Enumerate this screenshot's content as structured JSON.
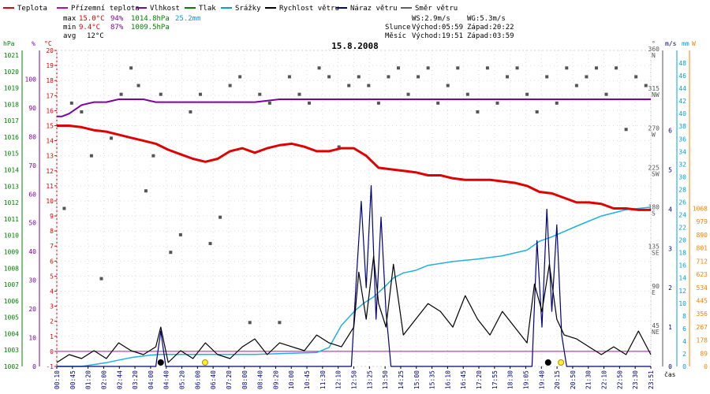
{
  "chart_data": {
    "type": "line",
    "title": "15.8.2008",
    "legend": [
      {
        "name": "Teplota",
        "color": "#e00000"
      },
      {
        "name": "Přízemní teplota",
        "color": "#c000c0"
      },
      {
        "name": "Vlhkost",
        "color": "#8000a0"
      },
      {
        "name": "Tlak",
        "color": "#008000"
      },
      {
        "name": "Srážky",
        "color": "#00a0e0"
      },
      {
        "name": "Rychlost větru",
        "color": "#000000"
      },
      {
        "name": "Náraz větru",
        "color": "#000080"
      },
      {
        "name": "Směr větru",
        "color": "#606060"
      }
    ],
    "stats": {
      "max_label": "max",
      "max_temp": "15.0°C",
      "max_hum": "94%",
      "max_press": "1014.8hPa",
      "precip_total": "25.2mm",
      "min_label": "min",
      "min_temp": "9.4°C",
      "min_hum": "87%",
      "min_press": "1009.5hPa",
      "avg_label": "avg",
      "avg_temp": "12°C",
      "ws": "WS:2.9m/s",
      "wg": "WG:5.3m/s",
      "sun_label": "Slunce",
      "sunrise": "Východ:05:59",
      "sunset": "Západ:20:22",
      "moon_label": "Měsíc",
      "moonrise": "Východ:19:51",
      "moonset": "Západ:03:59"
    },
    "axes": {
      "hpa_title": "hPa",
      "pct_title": "%",
      "temp_title": "°C",
      "dir_title": "°",
      "ms_title": "m/s",
      "mm_title": "mm",
      "w_title": "W",
      "hpa_ticks": [
        "1002",
        "1003",
        "1004",
        "1005",
        "1006",
        "1007",
        "1008",
        "1009",
        "1010",
        "1011",
        "1012",
        "1013",
        "1014",
        "1015",
        "1016",
        "1017",
        "1018",
        "1019",
        "1020",
        "1021"
      ],
      "pct_ticks": [
        "0",
        "10",
        "20",
        "30",
        "40",
        "50",
        "60",
        "70",
        "80",
        "90",
        "100"
      ],
      "temp_ticks": [
        "-1",
        "0",
        "1",
        "2",
        "3",
        "4",
        "5",
        "6",
        "7",
        "8",
        "9",
        "10",
        "11",
        "12",
        "13",
        "14",
        "15",
        "16",
        "17",
        "18",
        "19",
        "20"
      ],
      "temp_range": [
        -1,
        20
      ],
      "pct_range": [
        0,
        100
      ],
      "dir_ticks": [
        {
          "deg": 45,
          "label": "45",
          "compass": "NE"
        },
        {
          "deg": 90,
          "label": "90",
          "compass": "E"
        },
        {
          "deg": 135,
          "label": "135",
          "compass": "SE"
        },
        {
          "deg": 180,
          "label": "180",
          "compass": "S"
        },
        {
          "deg": 225,
          "label": "225",
          "compass": "SW"
        },
        {
          "deg": 270,
          "label": "270",
          "compass": "W"
        },
        {
          "deg": 315,
          "label": "315",
          "compass": "NW"
        },
        {
          "deg": 360,
          "label": "360",
          "compass": "N"
        }
      ],
      "dir_range": [
        0,
        360
      ],
      "ms_ticks": [
        "0",
        "1",
        "2",
        "3",
        "4",
        "5",
        "6"
      ],
      "ms_range": [
        0,
        6
      ],
      "mm_ticks": [
        "0",
        "2",
        "4",
        "6",
        "8",
        "10",
        "12",
        "14",
        "16",
        "18",
        "20",
        "22",
        "24",
        "26",
        "28",
        "30",
        "32",
        "34",
        "36",
        "38",
        "40",
        "42",
        "44",
        "46",
        "48"
      ],
      "mm_range": [
        0,
        48
      ],
      "w_ticks": [
        "0",
        "89",
        "178",
        "267",
        "356",
        "445",
        "534",
        "623",
        "712",
        "801",
        "890",
        "979",
        "1068"
      ],
      "w_range": [
        0,
        2136
      ],
      "x_label": "čas",
      "x_ticks": [
        "00:10",
        "00:45",
        "01:20",
        "02:00",
        "02:44",
        "03:20",
        "04:00",
        "04:40",
        "05:20",
        "06:00",
        "06:40",
        "07:20",
        "08:00",
        "08:40",
        "09:20",
        "10:00",
        "10:45",
        "11:30",
        "12:10",
        "12:50",
        "13:25",
        "13:50",
        "14:25",
        "15:00",
        "15:35",
        "16:10",
        "16:45",
        "17:20",
        "17:55",
        "18:30",
        "19:05",
        "19:40",
        "20:15",
        "20:50",
        "21:30",
        "22:10",
        "22:50",
        "23:30",
        "23:51"
      ]
    },
    "temperature": {
      "x_hours": [
        0,
        0.5,
        1,
        1.5,
        2,
        2.5,
        3,
        3.5,
        4,
        4.5,
        5,
        5.5,
        6,
        6.5,
        7,
        7.5,
        8,
        8.5,
        9,
        9.5,
        10,
        10.5,
        11,
        11.5,
        12,
        12.5,
        13,
        13.5,
        14,
        14.5,
        15,
        15.5,
        16,
        16.5,
        17,
        17.5,
        18,
        18.5,
        19,
        19.5,
        20,
        20.5,
        21,
        21.5,
        22,
        22.5,
        23,
        23.5,
        24
      ],
      "values": [
        15.0,
        15.0,
        14.9,
        14.7,
        14.6,
        14.4,
        14.2,
        14.0,
        13.8,
        13.4,
        13.1,
        12.8,
        12.6,
        12.8,
        13.3,
        13.5,
        13.2,
        13.5,
        13.7,
        13.8,
        13.6,
        13.3,
        13.3,
        13.5,
        13.5,
        13.0,
        12.2,
        12.1,
        12.0,
        11.9,
        11.7,
        11.7,
        11.5,
        11.4,
        11.4,
        11.4,
        11.3,
        11.2,
        11.0,
        10.6,
        10.5,
        10.2,
        9.9,
        9.9,
        9.8,
        9.5,
        9.5,
        9.4,
        9.4
      ]
    },
    "humidity": {
      "x_hours": [
        0,
        0.2,
        0.5,
        1,
        1.5,
        2,
        2.5,
        3,
        3.5,
        4,
        4.5,
        5,
        6,
        7,
        8,
        9,
        10,
        11,
        12,
        13,
        14,
        15,
        16,
        17,
        18,
        19,
        20,
        21,
        22,
        23,
        24
      ],
      "values": [
        87,
        87,
        88,
        91,
        92,
        92,
        93,
        93,
        93,
        92,
        92,
        92,
        92,
        92,
        92,
        93,
        93,
        93,
        93,
        93,
        93,
        93,
        93,
        93,
        93,
        93,
        93,
        93,
        93,
        93,
        93
      ]
    },
    "precipitation": {
      "x_hours": [
        0,
        1,
        2,
        3,
        3.8,
        4.2,
        6,
        8,
        9.5,
        10.5,
        11,
        11.5,
        11.9,
        12.1,
        12.4,
        12.8,
        13.3,
        13.6,
        14,
        14.5,
        15,
        16,
        17,
        18,
        19,
        19.5,
        20,
        21,
        22,
        23,
        24
      ],
      "values": [
        0,
        0,
        0.6,
        1.4,
        1.8,
        1.9,
        1.9,
        1.9,
        2.1,
        2.2,
        3.0,
        6.5,
        8.2,
        9.0,
        10.0,
        11.0,
        12.8,
        14.0,
        14.8,
        15.2,
        16.0,
        16.6,
        17.0,
        17.5,
        18.4,
        19.8,
        20.5,
        22.2,
        23.8,
        24.8,
        25.2
      ]
    },
    "wind_speed": {
      "x_hours": [
        0,
        0.5,
        1,
        1.5,
        2,
        2.5,
        3,
        3.5,
        4,
        4.2,
        4.5,
        5,
        5.5,
        6,
        6.5,
        7,
        7.5,
        8,
        8.5,
        9,
        9.5,
        10,
        10.5,
        11,
        11.5,
        12,
        12.2,
        12.5,
        12.8,
        13,
        13.3,
        13.6,
        14,
        14.5,
        15,
        15.5,
        16,
        16.5,
        17,
        17.5,
        18,
        18.5,
        19,
        19.3,
        19.6,
        19.9,
        20.2,
        20.5,
        21,
        21.5,
        22,
        22.5,
        23,
        23.5,
        24
      ],
      "values": [
        0.1,
        0.3,
        0.2,
        0.4,
        0.2,
        0.6,
        0.4,
        0.3,
        0.5,
        1.0,
        0.1,
        0.4,
        0.2,
        0.6,
        0.3,
        0.2,
        0.5,
        0.7,
        0.3,
        0.6,
        0.5,
        0.4,
        0.8,
        0.6,
        0.5,
        1.0,
        2.4,
        1.2,
        2.8,
        1.6,
        1.0,
        2.6,
        0.8,
        1.2,
        1.6,
        1.4,
        1.0,
        1.8,
        1.2,
        0.8,
        1.4,
        1.0,
        0.6,
        2.1,
        1.4,
        2.6,
        1.2,
        0.8,
        0.7,
        0.5,
        0.3,
        0.5,
        0.3,
        0.9,
        0.3
      ]
    },
    "wind_gust": {
      "x_hours": [
        0,
        4,
        4.2,
        4.4,
        11.9,
        12.1,
        12.3,
        12.5,
        12.7,
        12.9,
        13.1,
        13.3,
        13.5,
        19.2,
        19.4,
        19.6,
        19.8,
        20.0,
        20.2,
        20.4,
        20.6,
        24
      ],
      "values": [
        0,
        0,
        0.9,
        0,
        0,
        2.2,
        4.2,
        2.0,
        4.6,
        1.2,
        3.8,
        1.4,
        0,
        0,
        3.2,
        1.0,
        4.0,
        1.4,
        3.6,
        0.8,
        0,
        0
      ]
    },
    "wind_dir_points": [
      {
        "h": 0.3,
        "deg": 180
      },
      {
        "h": 0.6,
        "deg": 300
      },
      {
        "h": 1.0,
        "deg": 290
      },
      {
        "h": 1.4,
        "deg": 240
      },
      {
        "h": 1.8,
        "deg": 100
      },
      {
        "h": 2.2,
        "deg": 260
      },
      {
        "h": 2.6,
        "deg": 310
      },
      {
        "h": 3.0,
        "deg": 340
      },
      {
        "h": 3.3,
        "deg": 320
      },
      {
        "h": 3.6,
        "deg": 200
      },
      {
        "h": 3.9,
        "deg": 240
      },
      {
        "h": 4.2,
        "deg": 310
      },
      {
        "h": 4.6,
        "deg": 130
      },
      {
        "h": 5.0,
        "deg": 150
      },
      {
        "h": 5.4,
        "deg": 290
      },
      {
        "h": 5.8,
        "deg": 310
      },
      {
        "h": 6.2,
        "deg": 140
      },
      {
        "h": 6.6,
        "deg": 170
      },
      {
        "h": 7.0,
        "deg": 320
      },
      {
        "h": 7.4,
        "deg": 330
      },
      {
        "h": 7.8,
        "deg": 50
      },
      {
        "h": 8.2,
        "deg": 310
      },
      {
        "h": 8.6,
        "deg": 300
      },
      {
        "h": 9.0,
        "deg": 50
      },
      {
        "h": 9.4,
        "deg": 330
      },
      {
        "h": 9.8,
        "deg": 310
      },
      {
        "h": 10.2,
        "deg": 300
      },
      {
        "h": 10.6,
        "deg": 340
      },
      {
        "h": 11.0,
        "deg": 330
      },
      {
        "h": 11.4,
        "deg": 250
      },
      {
        "h": 11.8,
        "deg": 320
      },
      {
        "h": 12.2,
        "deg": 330
      },
      {
        "h": 12.6,
        "deg": 320
      },
      {
        "h": 13.0,
        "deg": 300
      },
      {
        "h": 13.4,
        "deg": 330
      },
      {
        "h": 13.8,
        "deg": 340
      },
      {
        "h": 14.2,
        "deg": 310
      },
      {
        "h": 14.6,
        "deg": 330
      },
      {
        "h": 15.0,
        "deg": 340
      },
      {
        "h": 15.4,
        "deg": 300
      },
      {
        "h": 15.8,
        "deg": 320
      },
      {
        "h": 16.2,
        "deg": 340
      },
      {
        "h": 16.6,
        "deg": 310
      },
      {
        "h": 17.0,
        "deg": 290
      },
      {
        "h": 17.4,
        "deg": 340
      },
      {
        "h": 17.8,
        "deg": 300
      },
      {
        "h": 18.2,
        "deg": 330
      },
      {
        "h": 18.6,
        "deg": 340
      },
      {
        "h": 19.0,
        "deg": 310
      },
      {
        "h": 19.4,
        "deg": 290
      },
      {
        "h": 19.8,
        "deg": 330
      },
      {
        "h": 20.2,
        "deg": 300
      },
      {
        "h": 20.6,
        "deg": 340
      },
      {
        "h": 21.0,
        "deg": 320
      },
      {
        "h": 21.4,
        "deg": 330
      },
      {
        "h": 21.8,
        "deg": 340
      },
      {
        "h": 22.2,
        "deg": 310
      },
      {
        "h": 22.6,
        "deg": 340
      },
      {
        "h": 23.0,
        "deg": 270
      },
      {
        "h": 23.4,
        "deg": 330
      },
      {
        "h": 23.8,
        "deg": 320
      }
    ],
    "markers": [
      {
        "h": 4.2,
        "kind": "moon"
      },
      {
        "h": 5.99,
        "kind": "sun"
      },
      {
        "h": 19.85,
        "kind": "moon"
      },
      {
        "h": 20.37,
        "kind": "sun"
      }
    ],
    "colors": {
      "temperature": "#e00000",
      "humidity": "#8000a0",
      "precip": "#20b0e0",
      "wind": "#000000",
      "gust": "#000080",
      "dir": "#555555",
      "hpa_axis": "#008000",
      "pct_axis": "#8000a0",
      "temp_axis": "#e00000",
      "ms_axis": "#000080",
      "mm_axis": "#00a0e0",
      "w_axis": "#ff8000",
      "zero_line": "#c000c0"
    }
  }
}
